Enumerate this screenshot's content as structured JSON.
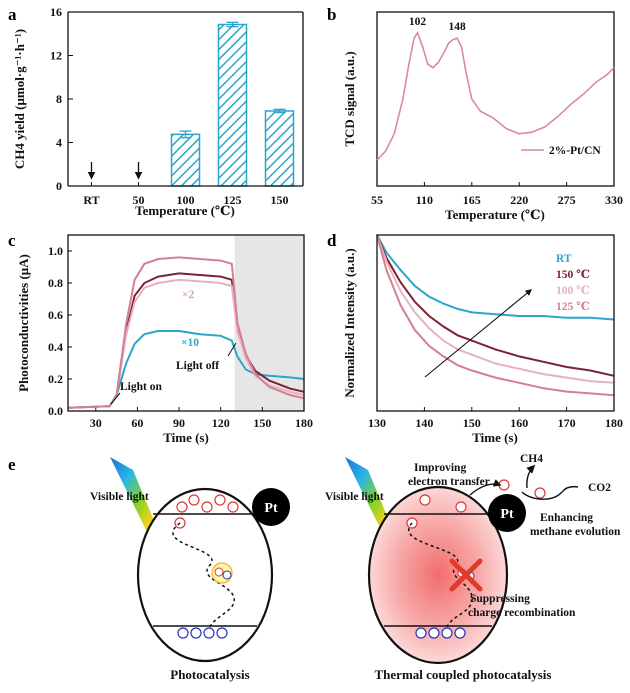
{
  "colors": {
    "cyan": "#2aa6c8",
    "maroon": "#7a2334",
    "pink_light": "#e8b1bf",
    "pink_mid": "#d47f93",
    "pink_tcd": "#d98b97",
    "grey_shade": "#e6e6e6",
    "electron": "#d83a3a",
    "hole": "#2233bb",
    "pt": "#000000"
  },
  "chart_data": [
    {
      "panel": "a",
      "type": "bar",
      "categories": [
        "RT",
        "50",
        "100",
        "125",
        "150"
      ],
      "values": [
        0,
        0,
        4.75,
        14.85,
        6.9
      ],
      "errors": [
        0,
        0,
        0.3,
        0.2,
        0.15
      ],
      "arrow_markers": [
        "RT",
        "50"
      ],
      "xlabel": "Temperature (℃)",
      "ylabel": "CH4 yield (μmol·g⁻¹·h⁻¹)",
      "ylim": [
        0,
        16
      ],
      "yticks": [
        "0",
        "4",
        "8",
        "12",
        "16"
      ]
    },
    {
      "panel": "b",
      "type": "line",
      "xlabel": "Temperature (℃)",
      "ylabel": "TCD signal (a.u.)",
      "xlim": [
        55,
        330
      ],
      "xticks": [
        "55",
        "110",
        "165",
        "220",
        "275",
        "330"
      ],
      "peak_labels": [
        "102",
        "148"
      ],
      "series": [
        {
          "name": "2%-Pt/CN",
          "x": [
            55,
            65,
            75,
            85,
            92,
            98,
            102,
            108,
            114,
            120,
            126,
            132,
            138,
            143,
            148,
            153,
            158,
            165,
            175,
            190,
            205,
            220,
            235,
            250,
            265,
            280,
            295,
            310,
            322,
            330
          ],
          "y": [
            0.15,
            0.2,
            0.3,
            0.5,
            0.7,
            0.85,
            0.88,
            0.8,
            0.7,
            0.68,
            0.71,
            0.76,
            0.82,
            0.84,
            0.85,
            0.8,
            0.66,
            0.5,
            0.43,
            0.39,
            0.33,
            0.3,
            0.31,
            0.34,
            0.4,
            0.47,
            0.53,
            0.6,
            0.64,
            0.68
          ]
        }
      ]
    },
    {
      "panel": "c",
      "type": "line",
      "xlabel": "Time (s)",
      "ylabel": "Photoconductivities (μA)",
      "xlim": [
        10,
        180
      ],
      "ylim": [
        0,
        1.1
      ],
      "xticks": [
        "30",
        "60",
        "90",
        "120",
        "150",
        "180"
      ],
      "yticks": [
        "0.0",
        "0.2",
        "0.4",
        "0.6",
        "0.8",
        "1.0"
      ],
      "shaded_from": 130,
      "annotations": [
        "Light on",
        "Light off",
        "×2",
        "×10"
      ],
      "series": [
        {
          "name": "RT (×10)",
          "color_key": "cyan",
          "x": [
            10,
            40,
            45,
            52,
            58,
            65,
            75,
            90,
            105,
            120,
            128,
            132,
            138,
            145,
            155,
            170,
            180
          ],
          "y": [
            0.02,
            0.03,
            0.1,
            0.3,
            0.42,
            0.48,
            0.5,
            0.5,
            0.48,
            0.47,
            0.44,
            0.34,
            0.26,
            0.23,
            0.22,
            0.21,
            0.2
          ]
        },
        {
          "name": "150 ℃",
          "color_key": "maroon",
          "x": [
            10,
            40,
            45,
            52,
            58,
            65,
            75,
            90,
            105,
            120,
            128,
            132,
            138,
            145,
            155,
            170,
            180
          ],
          "y": [
            0.02,
            0.03,
            0.1,
            0.5,
            0.72,
            0.8,
            0.84,
            0.86,
            0.85,
            0.84,
            0.82,
            0.52,
            0.35,
            0.25,
            0.19,
            0.14,
            0.12
          ]
        },
        {
          "name": "100 ℃",
          "color_key": "pink_light",
          "x": [
            10,
            40,
            45,
            52,
            58,
            65,
            75,
            90,
            105,
            120,
            128,
            132,
            138,
            145,
            155,
            170,
            180
          ],
          "y": [
            0.02,
            0.03,
            0.1,
            0.48,
            0.68,
            0.77,
            0.8,
            0.82,
            0.81,
            0.8,
            0.78,
            0.5,
            0.33,
            0.22,
            0.16,
            0.12,
            0.1
          ]
        },
        {
          "name": "125 ℃",
          "color_key": "pink_mid",
          "x": [
            10,
            40,
            45,
            52,
            58,
            65,
            75,
            90,
            105,
            120,
            128,
            132,
            138,
            145,
            155,
            170,
            180
          ],
          "y": [
            0.02,
            0.03,
            0.1,
            0.55,
            0.82,
            0.92,
            0.95,
            0.96,
            0.95,
            0.94,
            0.92,
            0.55,
            0.36,
            0.23,
            0.15,
            0.1,
            0.08
          ]
        }
      ]
    },
    {
      "panel": "d",
      "type": "line",
      "xlabel": "Time (s)",
      "ylabel": "Normalized Intensity (a.u.)",
      "xlim": [
        130,
        180
      ],
      "ylim": [
        0,
        1
      ],
      "xticks": [
        "130",
        "140",
        "150",
        "160",
        "170",
        "180"
      ],
      "series": [
        {
          "name": "RT",
          "color_key": "cyan",
          "x": [
            130,
            132,
            135,
            138,
            141,
            144,
            147,
            150,
            155,
            160,
            165,
            170,
            175,
            180
          ],
          "y": [
            1.0,
            0.9,
            0.8,
            0.71,
            0.65,
            0.61,
            0.58,
            0.56,
            0.55,
            0.54,
            0.54,
            0.53,
            0.53,
            0.52
          ]
        },
        {
          "name": "150 ℃",
          "color_key": "maroon",
          "x": [
            130,
            132,
            135,
            138,
            141,
            144,
            147,
            150,
            155,
            160,
            165,
            170,
            175,
            180
          ],
          "y": [
            1.0,
            0.87,
            0.73,
            0.62,
            0.54,
            0.48,
            0.43,
            0.4,
            0.35,
            0.31,
            0.28,
            0.25,
            0.23,
            0.2
          ]
        },
        {
          "name": "100 ℃",
          "color_key": "pink_light",
          "x": [
            130,
            132,
            135,
            138,
            141,
            144,
            147,
            150,
            155,
            160,
            165,
            170,
            175,
            180
          ],
          "y": [
            1.0,
            0.85,
            0.68,
            0.56,
            0.47,
            0.4,
            0.35,
            0.32,
            0.27,
            0.24,
            0.21,
            0.19,
            0.17,
            0.16
          ]
        },
        {
          "name": "125 ℃",
          "color_key": "pink_mid",
          "x": [
            130,
            132,
            135,
            138,
            141,
            144,
            147,
            150,
            155,
            160,
            165,
            170,
            175,
            180
          ],
          "y": [
            1.0,
            0.8,
            0.6,
            0.46,
            0.37,
            0.31,
            0.26,
            0.23,
            0.19,
            0.16,
            0.13,
            0.11,
            0.1,
            0.09
          ]
        }
      ]
    }
  ],
  "panel_e": {
    "label": "e",
    "left": {
      "light": "Visible light",
      "pt": "Pt",
      "caption": "Photocatalysis"
    },
    "right": {
      "light": "Visible light",
      "pt": "Pt",
      "transfer": [
        "Improving",
        "electron transfer"
      ],
      "ch4": "CH4",
      "co2": "CO2",
      "methane": [
        "Enhancing",
        "methane evolution"
      ],
      "recomb": [
        "Suppressing",
        "charge recombination"
      ],
      "caption": "Thermal coupled photocatalysis"
    },
    "electron_symbol": "e⁻",
    "hole_symbol": "h⁺"
  }
}
